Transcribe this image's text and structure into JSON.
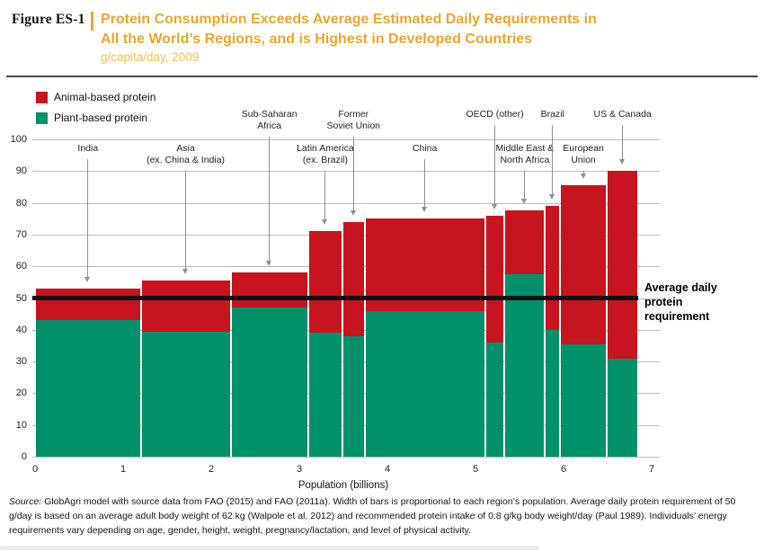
{
  "header": {
    "figure_label": "Figure ES-1",
    "title_lines": [
      "Protein Consumption Exceeds Average Estimated Daily Requirements in",
      "All the World’s Regions, and is Highest in Developed Countries"
    ],
    "subtitle": "g/capita/day, 2009"
  },
  "colors": {
    "title_gold": "#E9A62F",
    "subtitle_gold": "#F0BC55",
    "animal_red": "#C61420",
    "plant_green": "#00916B"
  },
  "legend": {
    "items": [
      {
        "label": "Animal-based protein",
        "color": "#C61420"
      },
      {
        "label": "Plant-based protein",
        "color": "#00916B"
      }
    ]
  },
  "chart_data": {
    "type": "bar",
    "variant": "variable-width stacked bars (Marimekko); bar width proportional to population",
    "title": "Protein Consumption Exceeds Average Estimated Daily Requirements in All the World's Regions, and is Highest in Developed Countries",
    "y_units": "g/capita/day",
    "xlabel": "Population (billions)",
    "ylabel": "",
    "xlim": [
      0,
      7
    ],
    "ylim": [
      0,
      100
    ],
    "xticks": [
      0,
      1,
      2,
      3,
      4,
      5,
      6,
      7
    ],
    "yticks": [
      0,
      10,
      20,
      30,
      40,
      50,
      60,
      70,
      80,
      90,
      100
    ],
    "grid": true,
    "legend_position": "top-left",
    "reference_line": {
      "value": 50,
      "label": "Average daily protein requirement"
    },
    "series": [
      {
        "name": "Animal-based protein",
        "color": "#C61420"
      },
      {
        "name": "Plant-based protein",
        "color": "#00916B"
      }
    ],
    "regions": [
      {
        "name": "India",
        "label_lines": [
          "India"
        ],
        "label_row": "lower",
        "pop_start": 0.0,
        "pop_end": 1.2,
        "plant_protein": 43,
        "animal_protein": 10,
        "total": 53
      },
      {
        "name": "Asia (ex. China & India)",
        "label_lines": [
          "Asia",
          "(ex. China & India)"
        ],
        "label_row": "lower",
        "pop_start": 1.2,
        "pop_end": 2.22,
        "plant_protein": 39.5,
        "animal_protein": 16,
        "total": 55.5
      },
      {
        "name": "Sub-Saharan Africa",
        "label_lines": [
          "Sub-Saharan",
          "Africa"
        ],
        "label_row": "upper",
        "pop_start": 2.22,
        "pop_end": 3.1,
        "plant_protein": 47,
        "animal_protein": 11,
        "total": 58
      },
      {
        "name": "Latin America (ex. Brazil)",
        "label_lines": [
          "Latin America",
          "(ex. Brazil)"
        ],
        "label_row": "lower",
        "pop_start": 3.1,
        "pop_end": 3.49,
        "plant_protein": 39,
        "animal_protein": 32,
        "total": 71
      },
      {
        "name": "Former Soviet Union",
        "label_lines": [
          "Former",
          "Soviet Union"
        ],
        "label_row": "upper",
        "pop_start": 3.49,
        "pop_end": 3.74,
        "plant_protein": 38,
        "animal_protein": 36,
        "total": 74
      },
      {
        "name": "China",
        "label_lines": [
          "China"
        ],
        "label_row": "lower",
        "pop_start": 3.74,
        "pop_end": 5.11,
        "plant_protein": 46,
        "animal_protein": 29,
        "total": 75
      },
      {
        "name": "OECD (other)",
        "label_lines": [
          "OECD (other)"
        ],
        "label_row": "upper",
        "pop_start": 5.11,
        "pop_end": 5.33,
        "plant_protein": 36,
        "animal_protein": 40,
        "total": 76
      },
      {
        "name": "Middle East & North Africa",
        "label_lines": [
          "Middle East &",
          "North Africa"
        ],
        "label_row": "lower",
        "pop_start": 5.33,
        "pop_end": 5.79,
        "plant_protein": 57.5,
        "animal_protein": 20,
        "total": 77.5
      },
      {
        "name": "Brazil",
        "label_lines": [
          "Brazil"
        ],
        "label_row": "upper",
        "pop_start": 5.79,
        "pop_end": 5.96,
        "plant_protein": 40,
        "animal_protein": 39,
        "total": 79
      },
      {
        "name": "European Union",
        "label_lines": [
          "European",
          "Union"
        ],
        "label_row": "lower",
        "pop_start": 5.96,
        "pop_end": 6.49,
        "plant_protein": 35.5,
        "animal_protein": 50,
        "total": 85.5
      },
      {
        "name": "US & Canada",
        "label_lines": [
          "US & Canada"
        ],
        "label_row": "upper",
        "pop_start": 6.49,
        "pop_end": 6.85,
        "plant_protein": 31,
        "animal_protein": 59,
        "total": 90
      }
    ]
  },
  "source_note": {
    "prefix": "Source:",
    "text": " GlobAgri model with source data from FAO (2015) and FAO (2011a). Width of bars is proportional to each region’s population. Average daily protein requirement of 50 g/day is based on an average adult body weight of 62 kg (Walpole et al. 2012) and recommended protein intake of 0.8 g/kg body weight/day (Paul 1989). Individuals’ energy requirements vary depending on age, gender, height, weight, pregnancy/lactation, and level of physical activity."
  }
}
